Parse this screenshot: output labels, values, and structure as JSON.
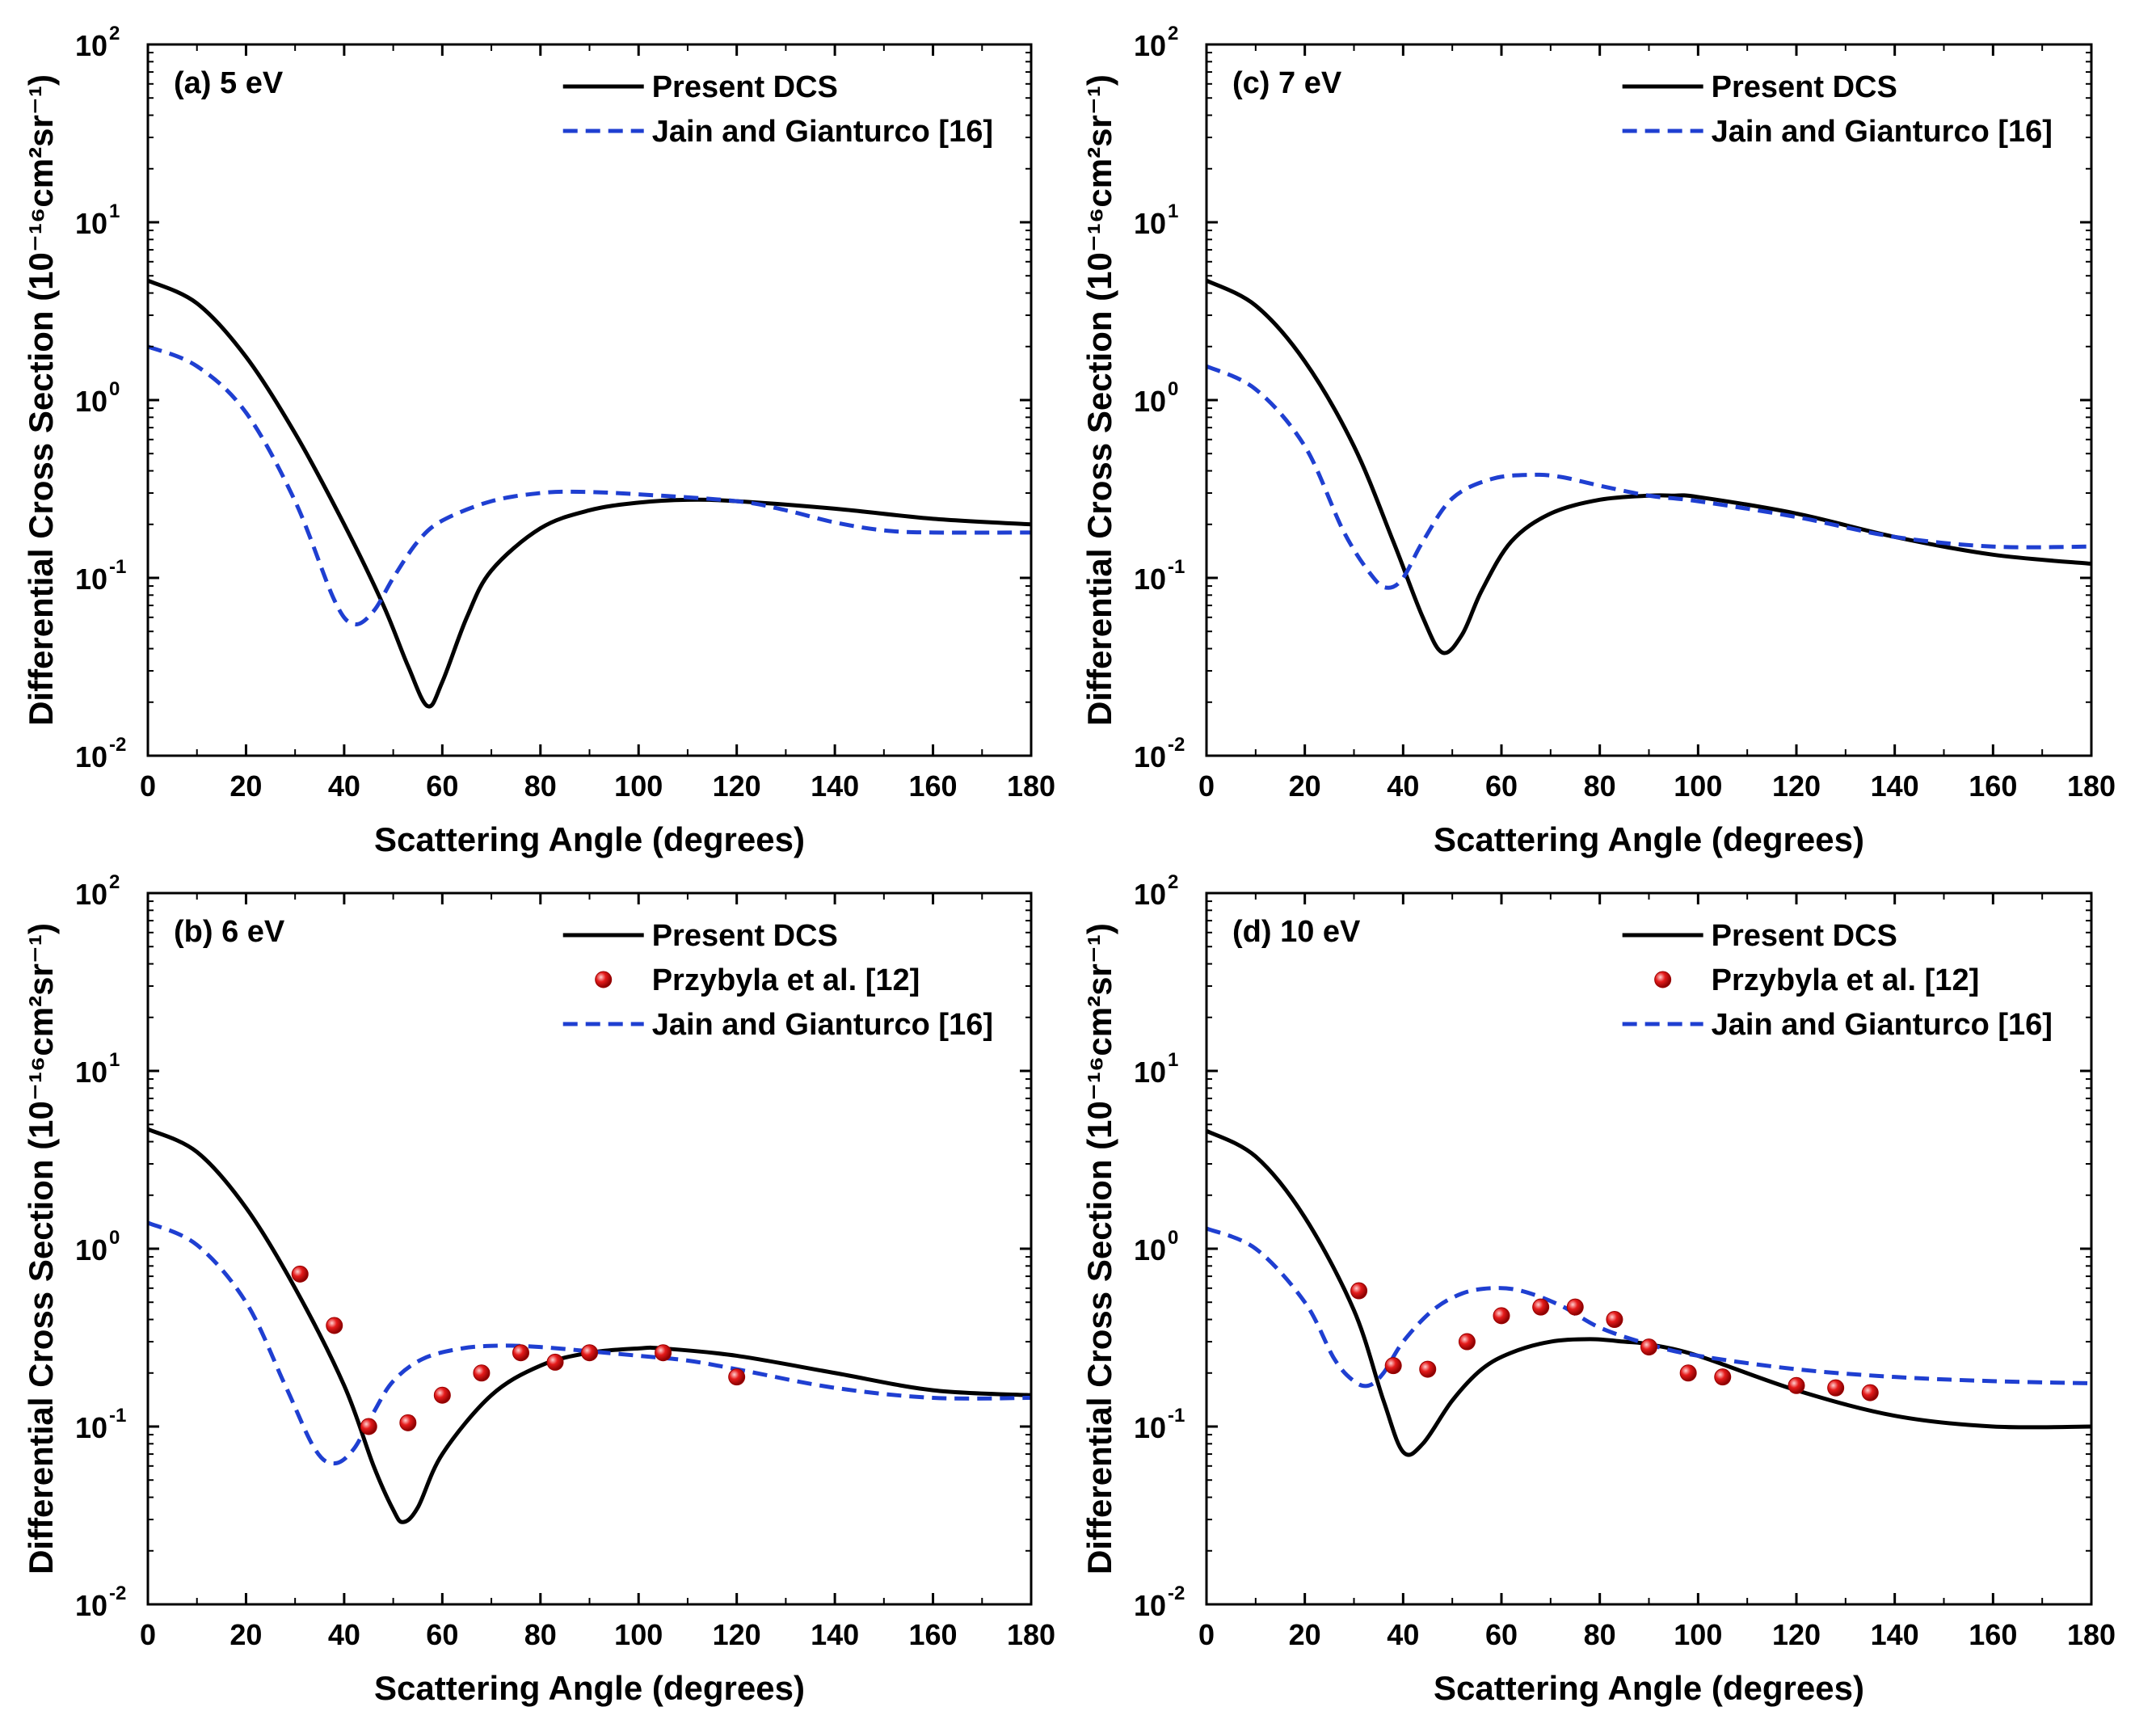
{
  "colors": {
    "present": "#000000",
    "jain": "#1f3fd1",
    "przybyla_fill": "#e51b1b",
    "przybyla_edge": "#9a0000"
  },
  "chart_data": [
    {
      "id": "a",
      "type": "line",
      "panel_label": "(a) 5 eV",
      "xlabel": "Scattering Angle (degrees)",
      "ylabel": "Differential Cross Section (10⁻¹⁶cm²sr⁻¹)",
      "xlim": [
        0,
        180
      ],
      "ylim": [
        0.01,
        100
      ],
      "yscale": "log",
      "xticks": [
        "0",
        "20",
        "40",
        "60",
        "80",
        "100",
        "120",
        "140",
        "160",
        "180"
      ],
      "yticks": [
        "10",
        "10",
        "10",
        "10",
        "10"
      ],
      "ytick_exponents": [
        "-2",
        "-1",
        "0",
        "1",
        "2"
      ],
      "legend": [
        "Present DCS",
        "Jain and Gianturco [16]"
      ],
      "series": [
        {
          "name": "Present DCS",
          "style": "solid",
          "x": [
            0,
            10,
            20,
            30,
            40,
            48,
            53,
            57,
            60,
            65,
            70,
            80,
            90,
            100,
            110,
            120,
            140,
            160,
            180
          ],
          "y": [
            4.7,
            3.5,
            1.75,
            0.65,
            0.2,
            0.07,
            0.032,
            0.019,
            0.026,
            0.06,
            0.11,
            0.19,
            0.24,
            0.265,
            0.275,
            0.27,
            0.245,
            0.215,
            0.2
          ]
        },
        {
          "name": "Jain and Gianturco [16]",
          "style": "dashed",
          "x": [
            0,
            10,
            20,
            30,
            38,
            42,
            46,
            50,
            55,
            60,
            70,
            80,
            88,
            100,
            120,
            130,
            140,
            150,
            160,
            180
          ],
          "y": [
            2.0,
            1.55,
            0.85,
            0.27,
            0.075,
            0.055,
            0.065,
            0.1,
            0.16,
            0.21,
            0.27,
            0.3,
            0.305,
            0.295,
            0.27,
            0.24,
            0.205,
            0.185,
            0.18,
            0.18
          ]
        }
      ]
    },
    {
      "id": "c",
      "type": "line",
      "panel_label": "(c) 7 eV",
      "xlabel": "Scattering Angle (degrees)",
      "ylabel": "Differential Cross Section (10⁻¹⁶cm²sr⁻¹)",
      "xlim": [
        0,
        180
      ],
      "ylim": [
        0.01,
        100
      ],
      "yscale": "log",
      "xticks": [
        "0",
        "20",
        "40",
        "60",
        "80",
        "100",
        "120",
        "140",
        "160",
        "180"
      ],
      "yticks": [
        "10",
        "10",
        "10",
        "10",
        "10"
      ],
      "ytick_exponents": [
        "-2",
        "-1",
        "0",
        "1",
        "2"
      ],
      "legend": [
        "Present DCS",
        "Jain and Gianturco [16]"
      ],
      "series": [
        {
          "name": "Present DCS",
          "style": "solid",
          "x": [
            0,
            10,
            20,
            30,
            38,
            44,
            48,
            52,
            56,
            62,
            70,
            80,
            90,
            95,
            100,
            120,
            140,
            160,
            180
          ],
          "y": [
            4.7,
            3.4,
            1.65,
            0.55,
            0.16,
            0.06,
            0.038,
            0.048,
            0.085,
            0.16,
            0.23,
            0.275,
            0.29,
            0.29,
            0.285,
            0.23,
            0.17,
            0.135,
            0.12
          ]
        },
        {
          "name": "Jain and Gianturco [16]",
          "style": "dashed",
          "x": [
            0,
            10,
            20,
            28,
            34,
            37,
            40,
            44,
            50,
            58,
            66,
            72,
            80,
            90,
            100,
            120,
            140,
            160,
            180
          ],
          "y": [
            1.55,
            1.15,
            0.55,
            0.18,
            0.1,
            0.088,
            0.1,
            0.16,
            0.28,
            0.36,
            0.38,
            0.37,
            0.33,
            0.29,
            0.27,
            0.22,
            0.17,
            0.15,
            0.15
          ]
        }
      ]
    },
    {
      "id": "b",
      "type": "line",
      "panel_label": "(b) 6 eV",
      "xlabel": "Scattering Angle (degrees)",
      "ylabel": "Differential Cross Section (10⁻¹⁶cm²sr⁻¹)",
      "xlim": [
        0,
        180
      ],
      "ylim": [
        0.01,
        100
      ],
      "yscale": "log",
      "xticks": [
        "0",
        "20",
        "40",
        "60",
        "80",
        "100",
        "120",
        "140",
        "160",
        "180"
      ],
      "yticks": [
        "10",
        "10",
        "10",
        "10",
        "10"
      ],
      "ytick_exponents": [
        "-2",
        "-1",
        "0",
        "1",
        "2"
      ],
      "legend": [
        "Present DCS",
        "Przybyla et al. [12]",
        "Jain and Gianturco [16]"
      ],
      "series": [
        {
          "name": "Present DCS",
          "style": "solid",
          "x": [
            0,
            10,
            20,
            30,
            40,
            46,
            50,
            52,
            55,
            60,
            70,
            80,
            90,
            100,
            105,
            120,
            140,
            160,
            180
          ],
          "y": [
            4.7,
            3.5,
            1.7,
            0.6,
            0.17,
            0.06,
            0.034,
            0.029,
            0.035,
            0.07,
            0.15,
            0.22,
            0.26,
            0.275,
            0.275,
            0.25,
            0.2,
            0.16,
            0.15
          ]
        },
        {
          "name": "Jain and Gianturco [16]",
          "style": "dashed",
          "x": [
            0,
            10,
            20,
            28,
            34,
            38,
            42,
            46,
            50,
            56,
            64,
            72,
            80,
            90,
            100,
            110,
            120,
            140,
            160,
            180
          ],
          "y": [
            1.4,
            1.05,
            0.5,
            0.17,
            0.075,
            0.062,
            0.075,
            0.12,
            0.18,
            0.24,
            0.275,
            0.285,
            0.28,
            0.265,
            0.25,
            0.235,
            0.21,
            0.165,
            0.145,
            0.145
          ]
        },
        {
          "name": "Przybyla et al. [12]",
          "style": "points",
          "x": [
            31,
            38,
            45,
            53,
            60,
            68,
            76,
            83,
            90,
            105,
            120
          ],
          "y": [
            0.72,
            0.37,
            0.1,
            0.105,
            0.15,
            0.2,
            0.26,
            0.23,
            0.26,
            0.26,
            0.19
          ]
        }
      ]
    },
    {
      "id": "d",
      "type": "line",
      "panel_label": "(d) 10 eV",
      "xlabel": "Scattering Angle (degrees)",
      "ylabel": "Differential Cross Section (10⁻¹⁶cm²sr⁻¹)",
      "xlim": [
        0,
        180
      ],
      "ylim": [
        0.01,
        100
      ],
      "yscale": "log",
      "xticks": [
        "0",
        "20",
        "40",
        "60",
        "80",
        "100",
        "120",
        "140",
        "160",
        "180"
      ],
      "yticks": [
        "10",
        "10",
        "10",
        "10",
        "10"
      ],
      "ytick_exponents": [
        "-2",
        "-1",
        "0",
        "1",
        "2"
      ],
      "legend": [
        "Present DCS",
        "Przybyla et al. [12]",
        "Jain and Gianturco [16]"
      ],
      "series": [
        {
          "name": "Present DCS",
          "style": "solid",
          "x": [
            0,
            10,
            20,
            30,
            36,
            40,
            44,
            50,
            56,
            62,
            70,
            78,
            85,
            90,
            100,
            120,
            140,
            160,
            180
          ],
          "y": [
            4.6,
            3.3,
            1.5,
            0.45,
            0.14,
            0.072,
            0.08,
            0.14,
            0.21,
            0.26,
            0.3,
            0.31,
            0.3,
            0.29,
            0.25,
            0.16,
            0.115,
            0.1,
            0.1
          ]
        },
        {
          "name": "Jain and Gianturco [16]",
          "style": "dashed",
          "x": [
            0,
            10,
            20,
            26,
            30,
            33,
            36,
            40,
            46,
            52,
            58,
            64,
            72,
            80,
            90,
            100,
            120,
            140,
            160,
            180
          ],
          "y": [
            1.3,
            1.0,
            0.5,
            0.24,
            0.18,
            0.17,
            0.2,
            0.3,
            0.45,
            0.56,
            0.6,
            0.58,
            0.48,
            0.36,
            0.29,
            0.25,
            0.21,
            0.19,
            0.18,
            0.175
          ]
        },
        {
          "name": "Przybyla et al. [12]",
          "style": "points",
          "x": [
            31,
            38,
            45,
            53,
            60,
            68,
            75,
            83,
            90,
            98,
            105,
            120,
            128,
            135
          ],
          "y": [
            0.58,
            0.22,
            0.21,
            0.3,
            0.42,
            0.47,
            0.47,
            0.4,
            0.28,
            0.2,
            0.19,
            0.17,
            0.165,
            0.155
          ]
        }
      ]
    }
  ]
}
